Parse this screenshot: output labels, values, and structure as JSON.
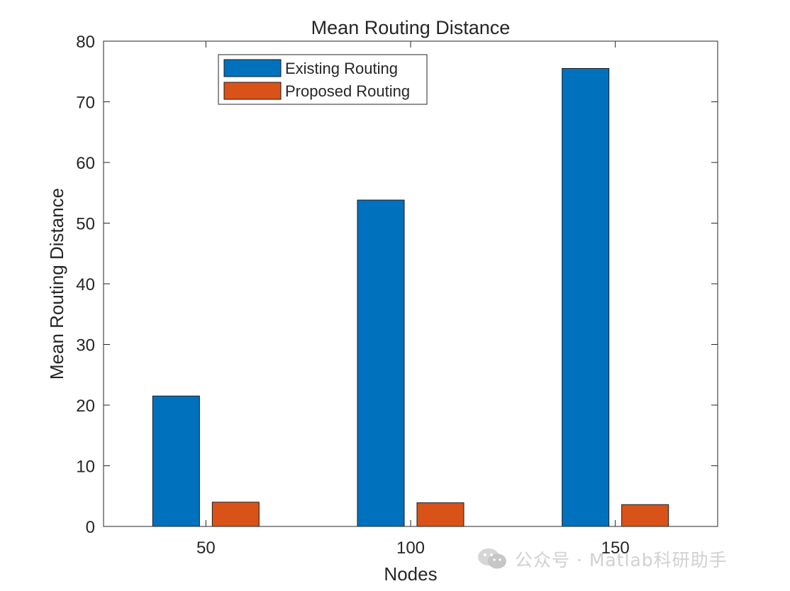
{
  "chart_data": {
    "type": "bar",
    "title": "Mean Routing Distance",
    "xlabel": "Nodes",
    "ylabel": "Mean Routing Distance",
    "categories": [
      "50",
      "100",
      "150"
    ],
    "ylim": [
      0,
      80
    ],
    "yticks": [
      0,
      10,
      20,
      30,
      40,
      50,
      60,
      70,
      80
    ],
    "series": [
      {
        "name": "Existing Routing",
        "color": "#0072BD",
        "values": [
          21.5,
          53.8,
          75.5
        ]
      },
      {
        "name": "Proposed Routing",
        "color": "#D95319",
        "values": [
          4.0,
          3.9,
          3.6
        ]
      }
    ],
    "grid": false,
    "legend": "top-left"
  },
  "watermark": {
    "text": "公众号 · Matlab科研助手",
    "icon": "wechat-icon"
  }
}
